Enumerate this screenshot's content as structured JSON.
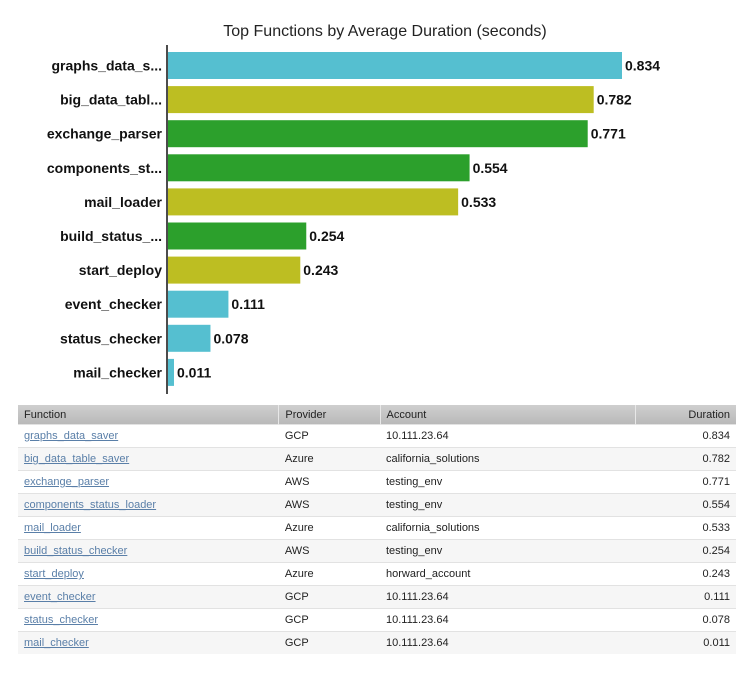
{
  "chart_data": {
    "type": "bar",
    "orientation": "horizontal",
    "title": "Top Functions by Average Duration (seconds)",
    "xlabel": "",
    "ylabel": "",
    "xlim": [
      0,
      0.834
    ],
    "grid": false,
    "legend": "none",
    "categories": [
      "graphs_data_s...",
      "big_data_tabl...",
      "exchange_parser",
      "components_st...",
      "mail_loader",
      "build_status_...",
      "start_deploy",
      "event_checker",
      "status_checker",
      "mail_checker"
    ],
    "values": [
      0.834,
      0.782,
      0.771,
      0.554,
      0.533,
      0.254,
      0.243,
      0.111,
      0.078,
      0.011
    ],
    "value_labels": [
      "0.834",
      "0.782",
      "0.771",
      "0.554",
      "0.533",
      "0.254",
      "0.243",
      "0.111",
      "0.078",
      "0.011"
    ],
    "colors": [
      "#55bfd0",
      "#bdbe22",
      "#2ca02c",
      "#2ca02c",
      "#bdbe22",
      "#2ca02c",
      "#bdbe22",
      "#55bfd0",
      "#55bfd0",
      "#55bfd0"
    ]
  },
  "table": {
    "headers": {
      "function": "Function",
      "provider": "Provider",
      "account": "Account",
      "duration": "Duration"
    },
    "rows": [
      {
        "function": "graphs_data_saver",
        "provider": "GCP",
        "account": "10.111.23.64",
        "duration": "0.834"
      },
      {
        "function": "big_data_table_saver",
        "provider": "Azure",
        "account": "california_solutions",
        "duration": "0.782"
      },
      {
        "function": "exchange_parser",
        "provider": "AWS",
        "account": "testing_env",
        "duration": "0.771"
      },
      {
        "function": "components_status_loader",
        "provider": "AWS",
        "account": "testing_env",
        "duration": "0.554"
      },
      {
        "function": "mail_loader",
        "provider": "Azure",
        "account": "california_solutions",
        "duration": "0.533"
      },
      {
        "function": "build_status_checker",
        "provider": "AWS",
        "account": "testing_env",
        "duration": "0.254"
      },
      {
        "function": "start_deploy",
        "provider": "Azure",
        "account": "horward_account",
        "duration": "0.243"
      },
      {
        "function": "event_checker",
        "provider": "GCP",
        "account": "10.111.23.64",
        "duration": "0.111"
      },
      {
        "function": "status_checker",
        "provider": "GCP",
        "account": "10.111.23.64",
        "duration": "0.078"
      },
      {
        "function": "mail_checker",
        "provider": "GCP",
        "account": "10.111.23.64",
        "duration": "0.011"
      }
    ]
  }
}
